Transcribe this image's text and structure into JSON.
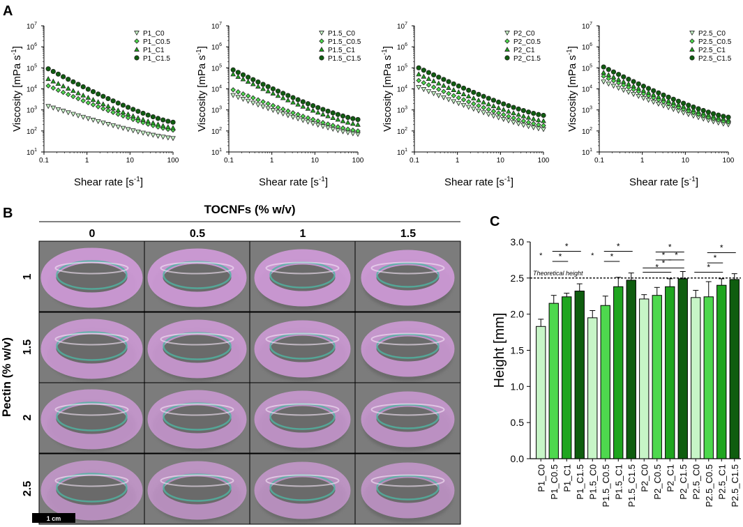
{
  "panel_labels": {
    "a": "A",
    "b": "B",
    "c": "C"
  },
  "colors": {
    "c0": "#c7f5c7",
    "c05": "#4ed84e",
    "c1": "#1fa51f",
    "c15": "#0f5d0f",
    "ring": "#d79ee0",
    "ring_bg": "#7c7c7c",
    "black": "#000000"
  },
  "panel_b": {
    "col_header": "TOCNFs (% w/v)",
    "row_header": "Pectin (% w/v)",
    "columns": [
      "0",
      "0.5",
      "1",
      "1.5"
    ],
    "rows": [
      "1",
      "1.5",
      "2",
      "2.5"
    ],
    "scale_bar": "1 cm"
  },
  "chart_data": [
    {
      "type": "scatter",
      "id": "P1",
      "xlabel": "Shear rate [s-1]",
      "ylabel": "Viscosity [mPa s-1]",
      "xscale": "log",
      "yscale": "log",
      "xlim": [
        0.1,
        100
      ],
      "ylim": [
        10,
        10000000
      ],
      "xticks": [
        "0.1",
        "1",
        "10",
        "100"
      ],
      "yticks": [
        1,
        2,
        3,
        4,
        5,
        6,
        7
      ],
      "legend_position": "top-right",
      "series": [
        {
          "name": "P1_C0",
          "marker": "triangle-down",
          "start": 1500,
          "end": 45
        },
        {
          "name": "P1_C0.5",
          "marker": "diamond",
          "start": 14000,
          "end": 110
        },
        {
          "name": "P1_C1",
          "marker": "triangle-up",
          "start": 30000,
          "end": 140
        },
        {
          "name": "P1_C1.5",
          "marker": "circle",
          "start": 90000,
          "end": 260
        }
      ]
    },
    {
      "type": "scatter",
      "id": "P1.5",
      "xlabel": "Shear rate [s-1]",
      "ylabel": "Viscosity [mPa s-1]",
      "xscale": "log",
      "yscale": "log",
      "xlim": [
        0.1,
        100
      ],
      "ylim": [
        10,
        10000000
      ],
      "xticks": [
        "0.1",
        "1",
        "10",
        "100"
      ],
      "yticks": [
        1,
        2,
        3,
        4,
        5,
        6,
        7
      ],
      "legend_position": "top-right",
      "series": [
        {
          "name": "P1.5_C0",
          "marker": "triangle-down",
          "start": 5000,
          "end": 70
        },
        {
          "name": "P1.5_C0.5",
          "marker": "diamond",
          "start": 9000,
          "end": 100
        },
        {
          "name": "P1.5_C1",
          "marker": "triangle-up",
          "start": 50000,
          "end": 200
        },
        {
          "name": "P1.5_C1.5",
          "marker": "circle",
          "start": 80000,
          "end": 350
        }
      ]
    },
    {
      "type": "scatter",
      "id": "P2",
      "xlabel": "Shear rate [s-1]",
      "ylabel": "Viscosity [mPa s-1]",
      "xscale": "log",
      "yscale": "log",
      "xlim": [
        0.1,
        100
      ],
      "ylim": [
        10,
        10000000
      ],
      "xticks": [
        "0.1",
        "1",
        "10",
        "100"
      ],
      "yticks": [
        1,
        2,
        3,
        4,
        5,
        6,
        7
      ],
      "legend_position": "top-right",
      "series": [
        {
          "name": "P2_C0",
          "marker": "triangle-down",
          "start": 12000,
          "end": 120
        },
        {
          "name": "P2_C0.5",
          "marker": "diamond",
          "start": 25000,
          "end": 180
        },
        {
          "name": "P2_C1",
          "marker": "triangle-up",
          "start": 50000,
          "end": 300
        },
        {
          "name": "P2_C1.5",
          "marker": "circle",
          "start": 100000,
          "end": 550
        }
      ]
    },
    {
      "type": "scatter",
      "id": "P2.5",
      "xlabel": "Shear rate [s-1]",
      "ylabel": "Viscosity [mPa s-1]",
      "xscale": "log",
      "yscale": "log",
      "xlim": [
        0.1,
        100
      ],
      "ylim": [
        10,
        10000000
      ],
      "xticks": [
        "0.1",
        "1",
        "10",
        "100"
      ],
      "yticks": [
        1,
        2,
        3,
        4,
        5,
        6,
        7
      ],
      "legend_position": "top-right",
      "series": [
        {
          "name": "P2.5_C0",
          "marker": "triangle-down",
          "start": 22000,
          "end": 200
        },
        {
          "name": "P2.5_C0.5",
          "marker": "diamond",
          "start": 40000,
          "end": 270
        },
        {
          "name": "P2.5_C1",
          "marker": "triangle-up",
          "start": 60000,
          "end": 350
        },
        {
          "name": "P2.5_C1.5",
          "marker": "circle",
          "start": 110000,
          "end": 450
        }
      ]
    },
    {
      "type": "bar",
      "id": "height",
      "ylabel": "Height [mm]",
      "ylim": [
        0,
        3.0
      ],
      "yticks": [
        "0.0",
        "0.5",
        "1.0",
        "1.5",
        "2.0",
        "2.5",
        "3.0"
      ],
      "reference_line": {
        "value": 2.5,
        "label": "Theoretical height"
      },
      "categories": [
        "P1_C0",
        "P1_C0.5",
        "P1_C1",
        "P1_C1.5",
        "P1.5_C0",
        "P1.5_C0.5",
        "P1.5_C1",
        "P1.5_C1.5",
        "P2_C0",
        "P2_C0.5",
        "P2_C1",
        "P2_C1.5",
        "P2.5_C0",
        "P2.5_C0.5",
        "P2.5_C1",
        "P2.5_C1.5"
      ],
      "values": [
        1.83,
        2.15,
        2.24,
        2.32,
        1.95,
        2.12,
        2.38,
        2.47,
        2.21,
        2.26,
        2.38,
        2.49,
        2.23,
        2.24,
        2.4,
        2.48
      ],
      "errors": [
        0.1,
        0.11,
        0.05,
        0.1,
        0.1,
        0.13,
        0.13,
        0.1,
        0.06,
        0.11,
        0.11,
        0.1,
        0.1,
        0.21,
        0.09,
        0.08
      ],
      "significance": [
        {
          "from": 1,
          "to": 2,
          "level": 2.73,
          "label": "*"
        },
        {
          "from": 1,
          "to": 3,
          "level": 2.87,
          "label": "*"
        },
        {
          "from": 5,
          "to": 6,
          "level": 2.73,
          "label": "*"
        },
        {
          "from": 5,
          "to": 7,
          "level": 2.87,
          "label": "*"
        },
        {
          "from": 8,
          "to": 10,
          "level": 2.58,
          "label": "*"
        },
        {
          "from": 8,
          "to": 11,
          "level": 2.64,
          "label": "*"
        },
        {
          "from": 9,
          "to": 10,
          "level": 2.75,
          "label": "*"
        },
        {
          "from": 9,
          "to": 11,
          "level": 2.86,
          "label": "*"
        },
        {
          "from": 10,
          "to": 11,
          "level": 2.75,
          "label": "*"
        },
        {
          "from": 12,
          "to": 14,
          "level": 2.58,
          "label": "*"
        },
        {
          "from": 13,
          "to": 14,
          "level": 2.71,
          "label": "*"
        },
        {
          "from": 13,
          "to": 15,
          "level": 2.85,
          "label": "*"
        }
      ],
      "group_markers": [
        {
          "at": 0,
          "label": "*"
        },
        {
          "at": 4,
          "label": "*"
        }
      ]
    }
  ]
}
